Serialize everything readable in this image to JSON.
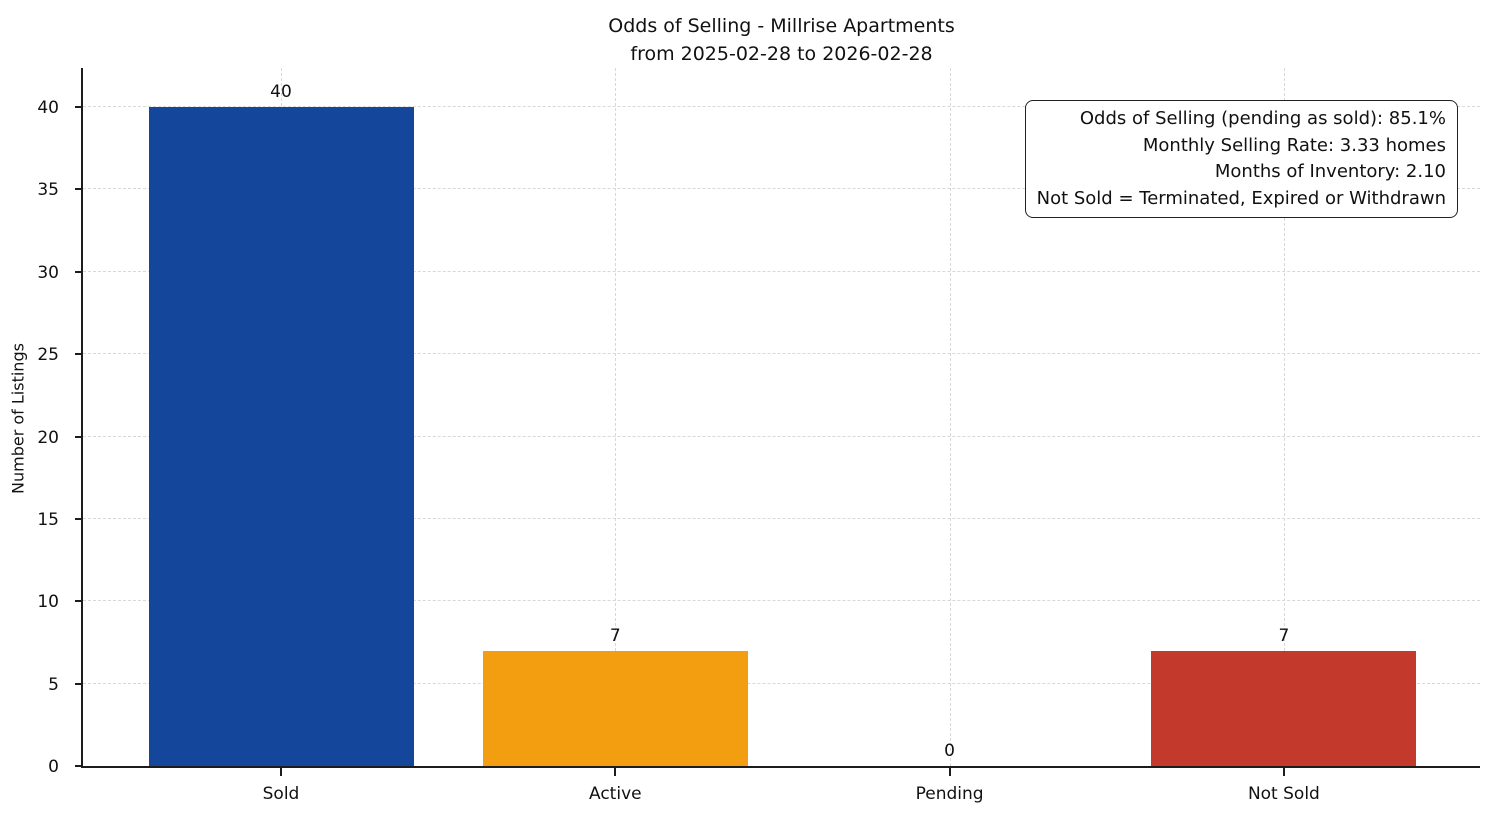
{
  "chart_data": {
    "type": "bar",
    "title": "Odds of Selling - Millrise Apartments",
    "subtitle": "from 2025-02-28 to 2026-02-28",
    "ylabel": "Number of Listings",
    "categories": [
      "Sold",
      "Active",
      "Pending",
      "Not Sold"
    ],
    "values": [
      40,
      7,
      0,
      7
    ],
    "bar_colors": [
      "#14469b",
      "#f39d11",
      "#888888",
      "#c33a2c"
    ],
    "value_labels": [
      "40",
      "7",
      "0",
      "7"
    ],
    "yticks": [
      0,
      5,
      10,
      15,
      20,
      25,
      30,
      35,
      40
    ],
    "ylim": [
      0,
      42.37
    ],
    "grid": "dashed",
    "legend_position": "none",
    "annotation": {
      "lines": [
        "Odds of Selling (pending as sold): 85.1%",
        "Monthly Selling Rate: 3.33 homes",
        "Months of Inventory: 2.10",
        "Not Sold = Terminated, Expired or Withdrawn"
      ]
    },
    "colors": {
      "axis": "#1c1c1c",
      "gridline": "#d8d8d8",
      "text": "#111111",
      "background": "#ffffff"
    }
  }
}
